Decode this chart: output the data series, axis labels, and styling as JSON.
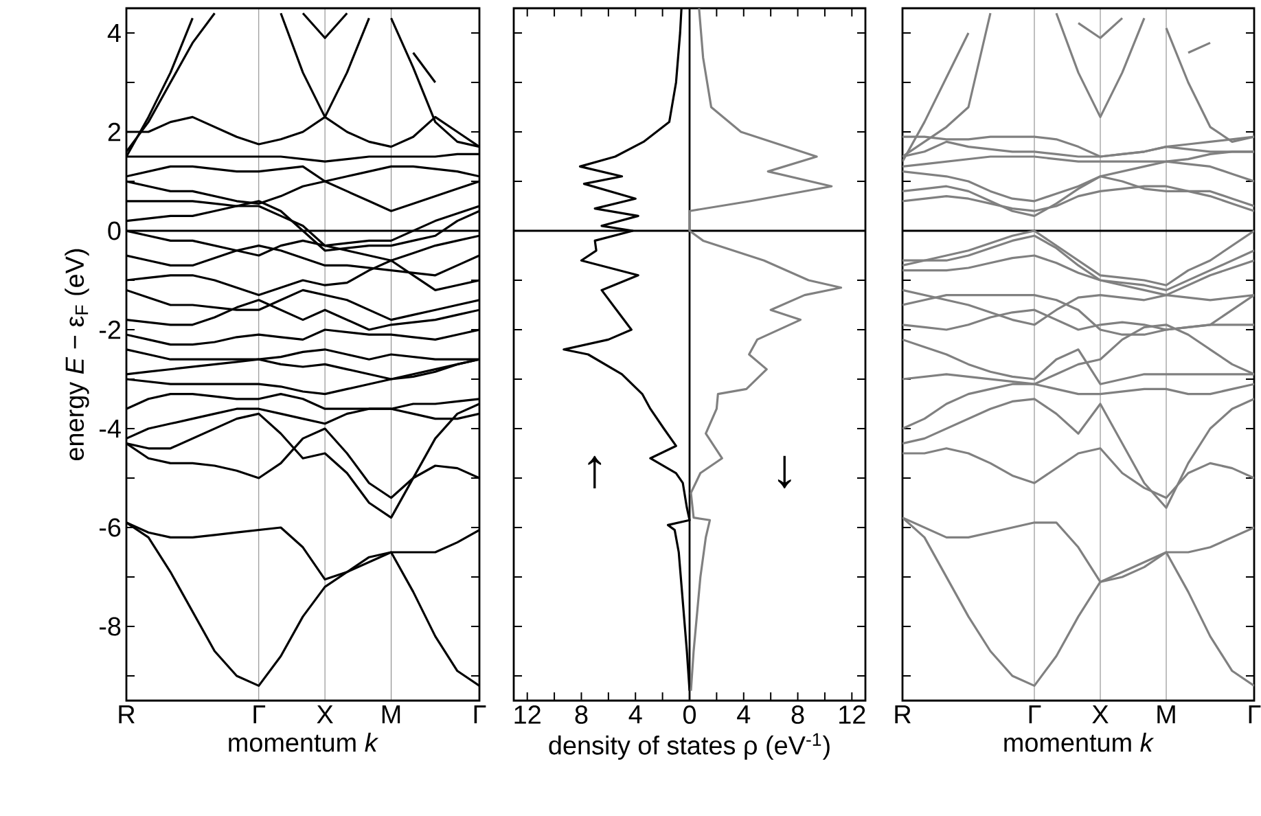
{
  "chart_data": [
    {
      "type": "line",
      "xlabel": "momentum  *k*",
      "ylabel": "energy   *E* − ε$_{F}$ (eV)",
      "ylim": [
        -9.5,
        4.5
      ],
      "grid": "x",
      "categories": [
        "R",
        null,
        null,
        null,
        null,
        null,
        "Γ",
        null,
        null,
        "X",
        null,
        null,
        "M",
        null,
        null,
        null,
        "Γ"
      ],
      "yticks": [
        {
          "value": -9,
          "label": null
        },
        -8,
        {
          "value": -7,
          "label": null
        },
        -6,
        {
          "value": -5,
          "label": null
        },
        -4,
        {
          "value": -3,
          "label": null
        },
        -2,
        {
          "value": -1,
          "label": null
        },
        0,
        {
          "value": 1,
          "label": null
        },
        2,
        {
          "value": 3,
          "label": null
        },
        4
      ],
      "ref_lines": [
        {
          "axis": "y",
          "value": 0,
          "color": "#000000"
        }
      ],
      "series": [
        {
          "color": "#000000",
          "values": [
            -5.9,
            -6.2,
            -6.9,
            -7.7,
            -8.5,
            -9.0,
            -9.2,
            -8.6,
            -7.8,
            -7.2,
            -6.9,
            -6.6,
            -6.5,
            -7.3,
            -8.2,
            -8.9,
            -9.2
          ]
        },
        {
          "color": "#000000",
          "values": [
            -5.9,
            -6.1,
            -6.2,
            -6.2,
            -6.15,
            -6.1,
            -6.05,
            -6.0,
            -6.4,
            -7.05,
            -6.9,
            -6.7,
            -6.5,
            -6.5,
            -6.5,
            -6.3,
            -6.05
          ]
        },
        {
          "color": "#000000",
          "values": [
            -4.3,
            -4.6,
            -4.7,
            -4.7,
            -4.75,
            -4.85,
            -5.0,
            -4.7,
            -4.2,
            -4.0,
            -4.5,
            -5.1,
            -5.4,
            -5.0,
            -4.75,
            -4.8,
            -5.0
          ]
        },
        {
          "color": "#000000",
          "values": [
            -4.3,
            -4.4,
            -4.4,
            -4.2,
            -4.0,
            -3.8,
            -3.7,
            -4.1,
            -4.6,
            -4.5,
            -4.9,
            -5.5,
            -5.8,
            -5.0,
            -4.2,
            -3.7,
            -3.5
          ]
        },
        {
          "color": "#000000",
          "values": [
            -4.2,
            -4.0,
            -3.9,
            -3.8,
            -3.7,
            -3.6,
            -3.6,
            -3.7,
            -3.8,
            -3.9,
            -3.7,
            -3.6,
            -3.6,
            -3.7,
            -3.8,
            -3.8,
            -3.7
          ]
        },
        {
          "color": "#000000",
          "values": [
            -3.6,
            -3.4,
            -3.3,
            -3.3,
            -3.35,
            -3.4,
            -3.4,
            -3.3,
            -3.4,
            -3.6,
            -3.6,
            -3.6,
            -3.6,
            -3.5,
            -3.5,
            -3.45,
            -3.4
          ]
        },
        {
          "color": "#000000",
          "values": [
            -3.0,
            -3.05,
            -3.1,
            -3.1,
            -3.1,
            -3.1,
            -3.1,
            -3.15,
            -3.25,
            -3.3,
            -3.2,
            -3.1,
            -3.0,
            -2.9,
            -2.8,
            -2.7,
            -2.6
          ]
        },
        {
          "color": "#000000",
          "values": [
            -2.9,
            -2.85,
            -2.8,
            -2.75,
            -2.7,
            -2.65,
            -2.6,
            -2.7,
            -2.75,
            -2.7,
            -2.8,
            -2.9,
            -3.0,
            -2.95,
            -2.85,
            -2.7,
            -2.6
          ]
        },
        {
          "color": "#000000",
          "values": [
            -2.4,
            -2.5,
            -2.6,
            -2.6,
            -2.6,
            -2.6,
            -2.6,
            -2.55,
            -2.45,
            -2.4,
            -2.5,
            -2.6,
            -2.5,
            -2.55,
            -2.6,
            -2.6,
            -2.6
          ]
        },
        {
          "color": "#000000",
          "values": [
            -2.1,
            -2.2,
            -2.3,
            -2.3,
            -2.25,
            -2.15,
            -2.1,
            -2.15,
            -2.2,
            -2.0,
            -2.05,
            -2.1,
            -2.1,
            -2.15,
            -2.2,
            -2.1,
            -2.0
          ]
        },
        {
          "color": "#000000",
          "values": [
            -1.8,
            -1.85,
            -1.9,
            -1.9,
            -1.75,
            -1.55,
            -1.4,
            -1.6,
            -1.8,
            -1.6,
            -1.8,
            -2.0,
            -1.9,
            -1.85,
            -1.8,
            -1.7,
            -1.6
          ]
        },
        {
          "color": "#000000",
          "values": [
            -1.2,
            -1.35,
            -1.5,
            -1.5,
            -1.55,
            -1.6,
            -1.6,
            -1.4,
            -1.2,
            -1.3,
            -1.4,
            -1.6,
            -1.8,
            -1.7,
            -1.6,
            -1.5,
            -1.4
          ]
        },
        {
          "color": "#000000",
          "values": [
            -1.0,
            -0.95,
            -0.9,
            -0.9,
            -1.0,
            -1.15,
            -1.3,
            -1.15,
            -1.0,
            -1.1,
            -1.05,
            -0.8,
            -0.6,
            -0.9,
            -1.2,
            -1.1,
            -1.0
          ]
        },
        {
          "color": "#000000",
          "values": [
            -0.5,
            -0.6,
            -0.7,
            -0.7,
            -0.55,
            -0.4,
            -0.3,
            -0.4,
            -0.55,
            -0.7,
            -0.7,
            -0.75,
            -0.8,
            -0.85,
            -0.9,
            -0.7,
            -0.5
          ]
        },
        {
          "color": "#000000",
          "values": [
            0.0,
            -0.1,
            -0.2,
            -0.2,
            -0.3,
            -0.4,
            -0.5,
            -0.3,
            -0.2,
            -0.3,
            -0.4,
            -0.5,
            -0.6,
            -0.45,
            -0.3,
            -0.2,
            -0.1
          ]
        },
        {
          "color": "#000000",
          "values": [
            0.2,
            0.25,
            0.3,
            0.3,
            0.4,
            0.5,
            0.6,
            0.4,
            0.0,
            -0.4,
            -0.35,
            -0.3,
            -0.3,
            -0.2,
            -0.1,
            0.2,
            0.4
          ]
        },
        {
          "color": "#000000",
          "values": [
            0.6,
            0.6,
            0.6,
            0.6,
            0.55,
            0.5,
            0.5,
            0.3,
            0.1,
            -0.3,
            -0.25,
            -0.2,
            -0.2,
            0.0,
            0.2,
            0.35,
            0.5
          ]
        },
        {
          "color": "#000000",
          "values": [
            1.0,
            0.9,
            0.8,
            0.8,
            0.7,
            0.6,
            0.55,
            0.7,
            0.9,
            1.0,
            0.8,
            0.6,
            0.4,
            0.55,
            0.7,
            0.85,
            1.0
          ]
        },
        {
          "color": "#000000",
          "values": [
            1.1,
            1.2,
            1.3,
            1.3,
            1.25,
            1.2,
            1.2,
            1.25,
            1.3,
            1.0,
            1.1,
            1.2,
            1.3,
            1.3,
            1.25,
            1.2,
            1.1
          ]
        },
        {
          "color": "#000000",
          "values": [
            1.5,
            1.5,
            1.5,
            1.5,
            1.5,
            1.5,
            1.5,
            1.5,
            1.45,
            1.4,
            1.45,
            1.5,
            1.5,
            1.5,
            1.5,
            1.55,
            1.55
          ]
        },
        {
          "color": "#000000",
          "values": [
            2.0,
            2.0,
            2.2,
            2.3,
            2.1,
            1.9,
            1.75,
            1.85,
            2.0,
            2.3,
            2.0,
            1.8,
            1.7,
            1.9,
            2.3,
            2.0,
            1.7
          ]
        },
        {
          "color": "#000000",
          "values": [
            1.5,
            2.3,
            3.2,
            4.3,
            null,
            null,
            null,
            null,
            null,
            null,
            null,
            null,
            null,
            null,
            null,
            null,
            null
          ]
        },
        {
          "color": "#000000",
          "values": [
            1.6,
            2.2,
            3.0,
            3.8,
            4.4,
            null,
            null,
            null,
            null,
            null,
            null,
            null,
            null,
            null,
            null,
            null,
            null
          ]
        },
        {
          "color": "#000000",
          "values": [
            null,
            null,
            null,
            null,
            null,
            null,
            null,
            4.4,
            3.2,
            2.3,
            3.2,
            4.3,
            null,
            null,
            null,
            null,
            null
          ]
        },
        {
          "color": "#000000",
          "values": [
            null,
            null,
            null,
            null,
            null,
            null,
            null,
            null,
            4.4,
            3.9,
            4.4,
            null,
            null,
            null,
            null,
            null,
            null
          ]
        },
        {
          "color": "#000000",
          "values": [
            null,
            null,
            null,
            null,
            null,
            null,
            null,
            null,
            null,
            null,
            null,
            null,
            null,
            3.6,
            3.0,
            null,
            null
          ]
        },
        {
          "color": "#000000",
          "values": [
            null,
            null,
            null,
            null,
            null,
            null,
            null,
            null,
            null,
            null,
            null,
            null,
            4.3,
            3.3,
            2.2,
            1.8,
            1.7
          ]
        }
      ]
    },
    {
      "type": "line",
      "xlabel": "density of states   ρ (eV$^{-1}$)",
      "xlim": [
        -13,
        13
      ],
      "ylim": [
        -9.5,
        4.5
      ],
      "tick_labels": "x",
      "xticks": [
        {
          "value": -12,
          "label": "12"
        },
        {
          "value": -10,
          "label": null
        },
        {
          "value": -8,
          "label": "8"
        },
        {
          "value": -6,
          "label": null
        },
        {
          "value": -4,
          "label": "4"
        },
        {
          "value": -2,
          "label": null
        },
        0,
        {
          "value": 2,
          "label": null
        },
        4,
        {
          "value": 6,
          "label": null
        },
        8,
        {
          "value": 10,
          "label": null
        },
        12
      ],
      "yticks": [
        -9,
        -8,
        -7,
        -6,
        -5,
        -4,
        -3,
        -2,
        -1,
        0,
        1,
        2,
        3,
        4
      ],
      "ref_lines": [
        {
          "axis": "y",
          "value": 0,
          "color": "#000000"
        },
        {
          "axis": "x",
          "value": 0,
          "color": "#000000"
        }
      ],
      "annotations": [
        "↑",
        "↓"
      ],
      "series": [
        {
          "color": "#000000",
          "x": [
            -0.6,
            -0.7,
            -1.0,
            -1.5,
            -3.4,
            -5.5,
            -8.1,
            -5.0,
            -7.8,
            -4.0,
            -7.0,
            -3.8,
            -6.5,
            -4.2,
            -7.0,
            -6.9,
            -8.0,
            -3.8,
            -6.5,
            -5.4,
            -4.3,
            -6.0,
            -9.3,
            -7.5,
            -5.0,
            -3.5,
            -2.9,
            -1.9,
            -1.0,
            -2.9,
            -1.0,
            -0.5,
            -0.2,
            0,
            -1.6,
            -1.1,
            -0.8,
            -0.2,
            0
          ],
          "values": [
            4.5,
            4,
            3,
            2.2,
            1.8,
            1.5,
            1.3,
            1.1,
            0.95,
            0.65,
            0.45,
            0.3,
            0.1,
            0,
            -0.2,
            -0.4,
            -0.6,
            -0.9,
            -1.2,
            -1.6,
            -2.0,
            -2.2,
            -2.4,
            -2.5,
            -2.9,
            -3.3,
            -3.6,
            -4.0,
            -4.35,
            -4.6,
            -4.9,
            -5.1,
            -5.6,
            -5.85,
            -5.95,
            -6.05,
            -6.5,
            -8.5,
            -9.3
          ]
        },
        {
          "color": "#808080",
          "x": [
            0.7,
            1.0,
            1.6,
            3.8,
            9.4,
            5.8,
            10.5,
            4.5,
            0,
            0,
            1.0,
            5.5,
            8.8,
            11.2,
            8.5,
            6.0,
            8.2,
            5.0,
            4.4,
            5.7,
            4.2,
            2.1,
            2.0,
            1.2,
            2.4,
            0.8,
            0.1,
            0.3,
            1.5,
            1.2,
            0.8,
            0.3,
            0.1
          ],
          "values": [
            4.5,
            3.5,
            2.5,
            2.0,
            1.5,
            1.2,
            0.9,
            0.6,
            0.4,
            0.0,
            -0.2,
            -0.6,
            -1.0,
            -1.15,
            -1.3,
            -1.6,
            -1.8,
            -2.2,
            -2.5,
            -2.8,
            -3.2,
            -3.3,
            -3.6,
            -4.1,
            -4.6,
            -4.9,
            -5.3,
            -5.8,
            -5.85,
            -6.2,
            -7.0,
            -8.5,
            -9.3
          ]
        }
      ]
    },
    {
      "type": "line",
      "xlabel": "momentum  *k*",
      "ylim": [
        -9.5,
        4.5
      ],
      "grid": "x",
      "tick_labels": "x",
      "categories": [
        "R",
        null,
        null,
        null,
        null,
        null,
        "Γ",
        null,
        null,
        "X",
        null,
        null,
        "M",
        null,
        null,
        null,
        "Γ"
      ],
      "yticks": [
        -9,
        -8,
        -7,
        -6,
        -5,
        -4,
        -3,
        -2,
        -1,
        0,
        1,
        2,
        3,
        4
      ],
      "ref_lines": [
        {
          "axis": "y",
          "value": 0,
          "color": "#000000"
        }
      ],
      "series": [
        {
          "color": "#808080",
          "values": [
            -5.8,
            -6.2,
            -7.0,
            -7.8,
            -8.5,
            -9.0,
            -9.2,
            -8.6,
            -7.8,
            -7.1,
            -6.9,
            -6.7,
            -6.5,
            -7.3,
            -8.2,
            -8.9,
            -9.2
          ]
        },
        {
          "color": "#808080",
          "values": [
            -5.8,
            -6.0,
            -6.2,
            -6.2,
            -6.1,
            -6.0,
            -5.9,
            -5.9,
            -6.4,
            -7.1,
            -7.0,
            -6.8,
            -6.5,
            -6.5,
            -6.4,
            -6.2,
            -6.0
          ]
        },
        {
          "color": "#808080",
          "values": [
            -4.5,
            -4.5,
            -4.4,
            -4.5,
            -4.7,
            -4.95,
            -5.1,
            -4.8,
            -4.5,
            -4.4,
            -4.9,
            -5.2,
            -5.4,
            -4.9,
            -4.7,
            -4.8,
            -5.0
          ]
        },
        {
          "color": "#808080",
          "values": [
            -4.3,
            -4.2,
            -4.0,
            -3.8,
            -3.6,
            -3.45,
            -3.4,
            -3.7,
            -4.1,
            -3.5,
            -4.3,
            -5.1,
            -5.6,
            -4.7,
            -4.0,
            -3.6,
            -3.4
          ]
        },
        {
          "color": "#808080",
          "values": [
            -4.0,
            -3.8,
            -3.5,
            -3.3,
            -3.2,
            -3.1,
            -3.1,
            -3.2,
            -3.3,
            -3.3,
            -3.25,
            -3.2,
            -3.2,
            -3.3,
            -3.3,
            -3.2,
            -3.1
          ]
        },
        {
          "color": "#808080",
          "values": [
            -3.0,
            -2.95,
            -2.9,
            -2.95,
            -3.0,
            -3.05,
            -3.1,
            -2.9,
            -2.7,
            -2.6,
            -2.2,
            -1.95,
            -1.9,
            -2.1,
            -2.4,
            -2.7,
            -2.9
          ]
        },
        {
          "color": "#808080",
          "values": [
            -2.2,
            -2.35,
            -2.5,
            -2.7,
            -2.85,
            -2.95,
            -3.0,
            -2.6,
            -2.4,
            -3.1,
            -3.0,
            -2.9,
            -2.9,
            -2.9,
            -2.9,
            -2.9,
            -2.9
          ]
        },
        {
          "color": "#808080",
          "values": [
            -1.9,
            -1.95,
            -2.0,
            -1.9,
            -1.75,
            -1.65,
            -1.6,
            -1.8,
            -2.0,
            -1.9,
            -1.85,
            -1.9,
            -2.0,
            -1.95,
            -1.9,
            -1.9,
            -1.9
          ]
        },
        {
          "color": "#808080",
          "values": [
            -1.5,
            -1.4,
            -1.3,
            -1.3,
            -1.3,
            -1.3,
            -1.3,
            -1.4,
            -1.6,
            -2.0,
            -2.1,
            -2.1,
            -2.0,
            -1.95,
            -1.9,
            -1.6,
            -1.3
          ]
        },
        {
          "color": "#808080",
          "values": [
            -1.2,
            -1.3,
            -1.4,
            -1.5,
            -1.65,
            -1.8,
            -1.9,
            -1.6,
            -1.35,
            -1.3,
            -1.35,
            -1.4,
            -1.3,
            -1.35,
            -1.4,
            -1.35,
            -1.3
          ]
        },
        {
          "color": "#808080",
          "values": [
            -0.8,
            -0.8,
            -0.8,
            -0.75,
            -0.65,
            -0.55,
            -0.5,
            -0.65,
            -0.85,
            -1.0,
            -1.1,
            -1.2,
            -1.3,
            -1.1,
            -0.9,
            -0.75,
            -0.6
          ]
        },
        {
          "color": "#808080",
          "values": [
            -0.6,
            -0.6,
            -0.6,
            -0.5,
            -0.35,
            -0.2,
            -0.1,
            -0.35,
            -0.7,
            -1.0,
            -1.05,
            -1.1,
            -1.2,
            -1.0,
            -0.8,
            -0.6,
            -0.4
          ]
        },
        {
          "color": "#808080",
          "values": [
            -0.7,
            -0.6,
            -0.5,
            -0.4,
            -0.25,
            -0.1,
            0.0,
            -0.3,
            -0.6,
            -0.9,
            -0.95,
            -1.0,
            -1.1,
            -0.8,
            -0.6,
            -0.3,
            0.0
          ]
        },
        {
          "color": "#808080",
          "values": [
            0.6,
            0.65,
            0.7,
            0.65,
            0.55,
            0.45,
            0.4,
            0.5,
            0.7,
            0.8,
            0.85,
            0.9,
            0.9,
            0.8,
            0.7,
            0.55,
            0.4
          ]
        },
        {
          "color": "#808080",
          "values": [
            0.8,
            0.85,
            0.9,
            0.8,
            0.6,
            0.4,
            0.3,
            0.55,
            0.85,
            1.1,
            1.0,
            0.85,
            0.8,
            0.8,
            0.8,
            0.65,
            0.5
          ]
        },
        {
          "color": "#808080",
          "values": [
            1.2,
            1.15,
            1.1,
            1.0,
            0.8,
            0.65,
            0.6,
            0.75,
            0.9,
            1.1,
            1.2,
            1.3,
            1.4,
            1.35,
            1.3,
            1.15,
            1.0
          ]
        },
        {
          "color": "#808080",
          "values": [
            1.3,
            1.35,
            1.4,
            1.45,
            1.5,
            1.5,
            1.5,
            1.45,
            1.4,
            1.4,
            1.4,
            1.4,
            1.4,
            1.45,
            1.55,
            1.6,
            1.6
          ]
        },
        {
          "color": "#808080",
          "values": [
            1.5,
            1.6,
            1.8,
            1.7,
            1.65,
            1.6,
            1.6,
            1.55,
            1.5,
            1.5,
            1.55,
            1.6,
            1.7,
            1.65,
            1.6,
            1.6,
            1.6
          ]
        },
        {
          "color": "#808080",
          "values": [
            1.9,
            1.9,
            1.85,
            1.85,
            1.9,
            1.9,
            1.9,
            1.85,
            1.7,
            1.5,
            1.55,
            1.6,
            1.7,
            1.75,
            1.8,
            1.85,
            1.9
          ]
        },
        {
          "color": "#808080",
          "values": [
            1.5,
            1.8,
            2.1,
            2.5,
            4.4,
            null,
            null,
            null,
            null,
            null,
            null,
            null,
            null,
            null,
            null,
            null,
            null
          ]
        },
        {
          "color": "#808080",
          "values": [
            1.4,
            2.2,
            3.1,
            4.0,
            null,
            null,
            null,
            null,
            null,
            null,
            null,
            null,
            null,
            null,
            null,
            null,
            null
          ]
        },
        {
          "color": "#808080",
          "values": [
            null,
            null,
            null,
            null,
            null,
            null,
            null,
            4.4,
            3.2,
            2.3,
            3.2,
            4.3,
            null,
            null,
            null,
            null,
            null
          ]
        },
        {
          "color": "#808080",
          "values": [
            null,
            null,
            null,
            null,
            null,
            null,
            null,
            null,
            4.2,
            3.9,
            4.3,
            null,
            null,
            null,
            null,
            null,
            null
          ]
        },
        {
          "color": "#808080",
          "values": [
            null,
            null,
            null,
            null,
            null,
            null,
            null,
            null,
            null,
            null,
            null,
            null,
            null,
            3.6,
            3.8,
            null,
            null
          ]
        },
        {
          "color": "#808080",
          "values": [
            null,
            null,
            null,
            null,
            null,
            null,
            null,
            null,
            null,
            null,
            null,
            null,
            4.1,
            3.0,
            2.1,
            1.8,
            1.9
          ]
        }
      ]
    }
  ]
}
